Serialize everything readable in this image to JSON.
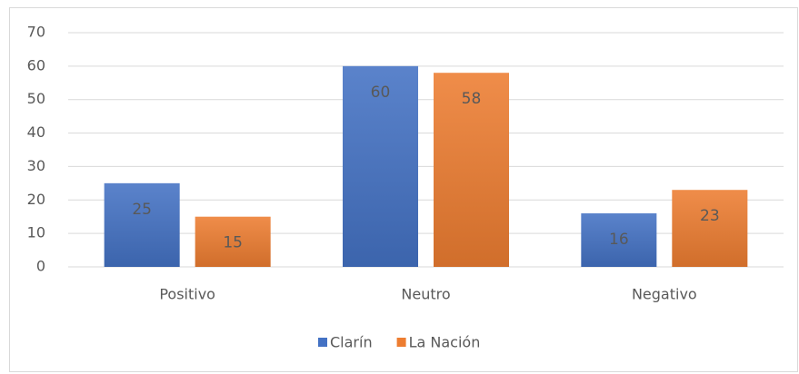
{
  "chart_data": {
    "type": "bar",
    "categories": [
      "Positivo",
      "Neutro",
      "Negativo"
    ],
    "series": [
      {
        "name": "Clarín",
        "color": "#4472c4",
        "values": [
          25,
          60,
          16
        ]
      },
      {
        "name": "La Nación",
        "color": "#ed7d31",
        "values": [
          15,
          58,
          23
        ]
      }
    ],
    "ylim": [
      0,
      70
    ],
    "yticks": [
      0,
      10,
      20,
      30,
      40,
      50,
      60,
      70
    ],
    "grid": true,
    "legend": "bottom"
  }
}
